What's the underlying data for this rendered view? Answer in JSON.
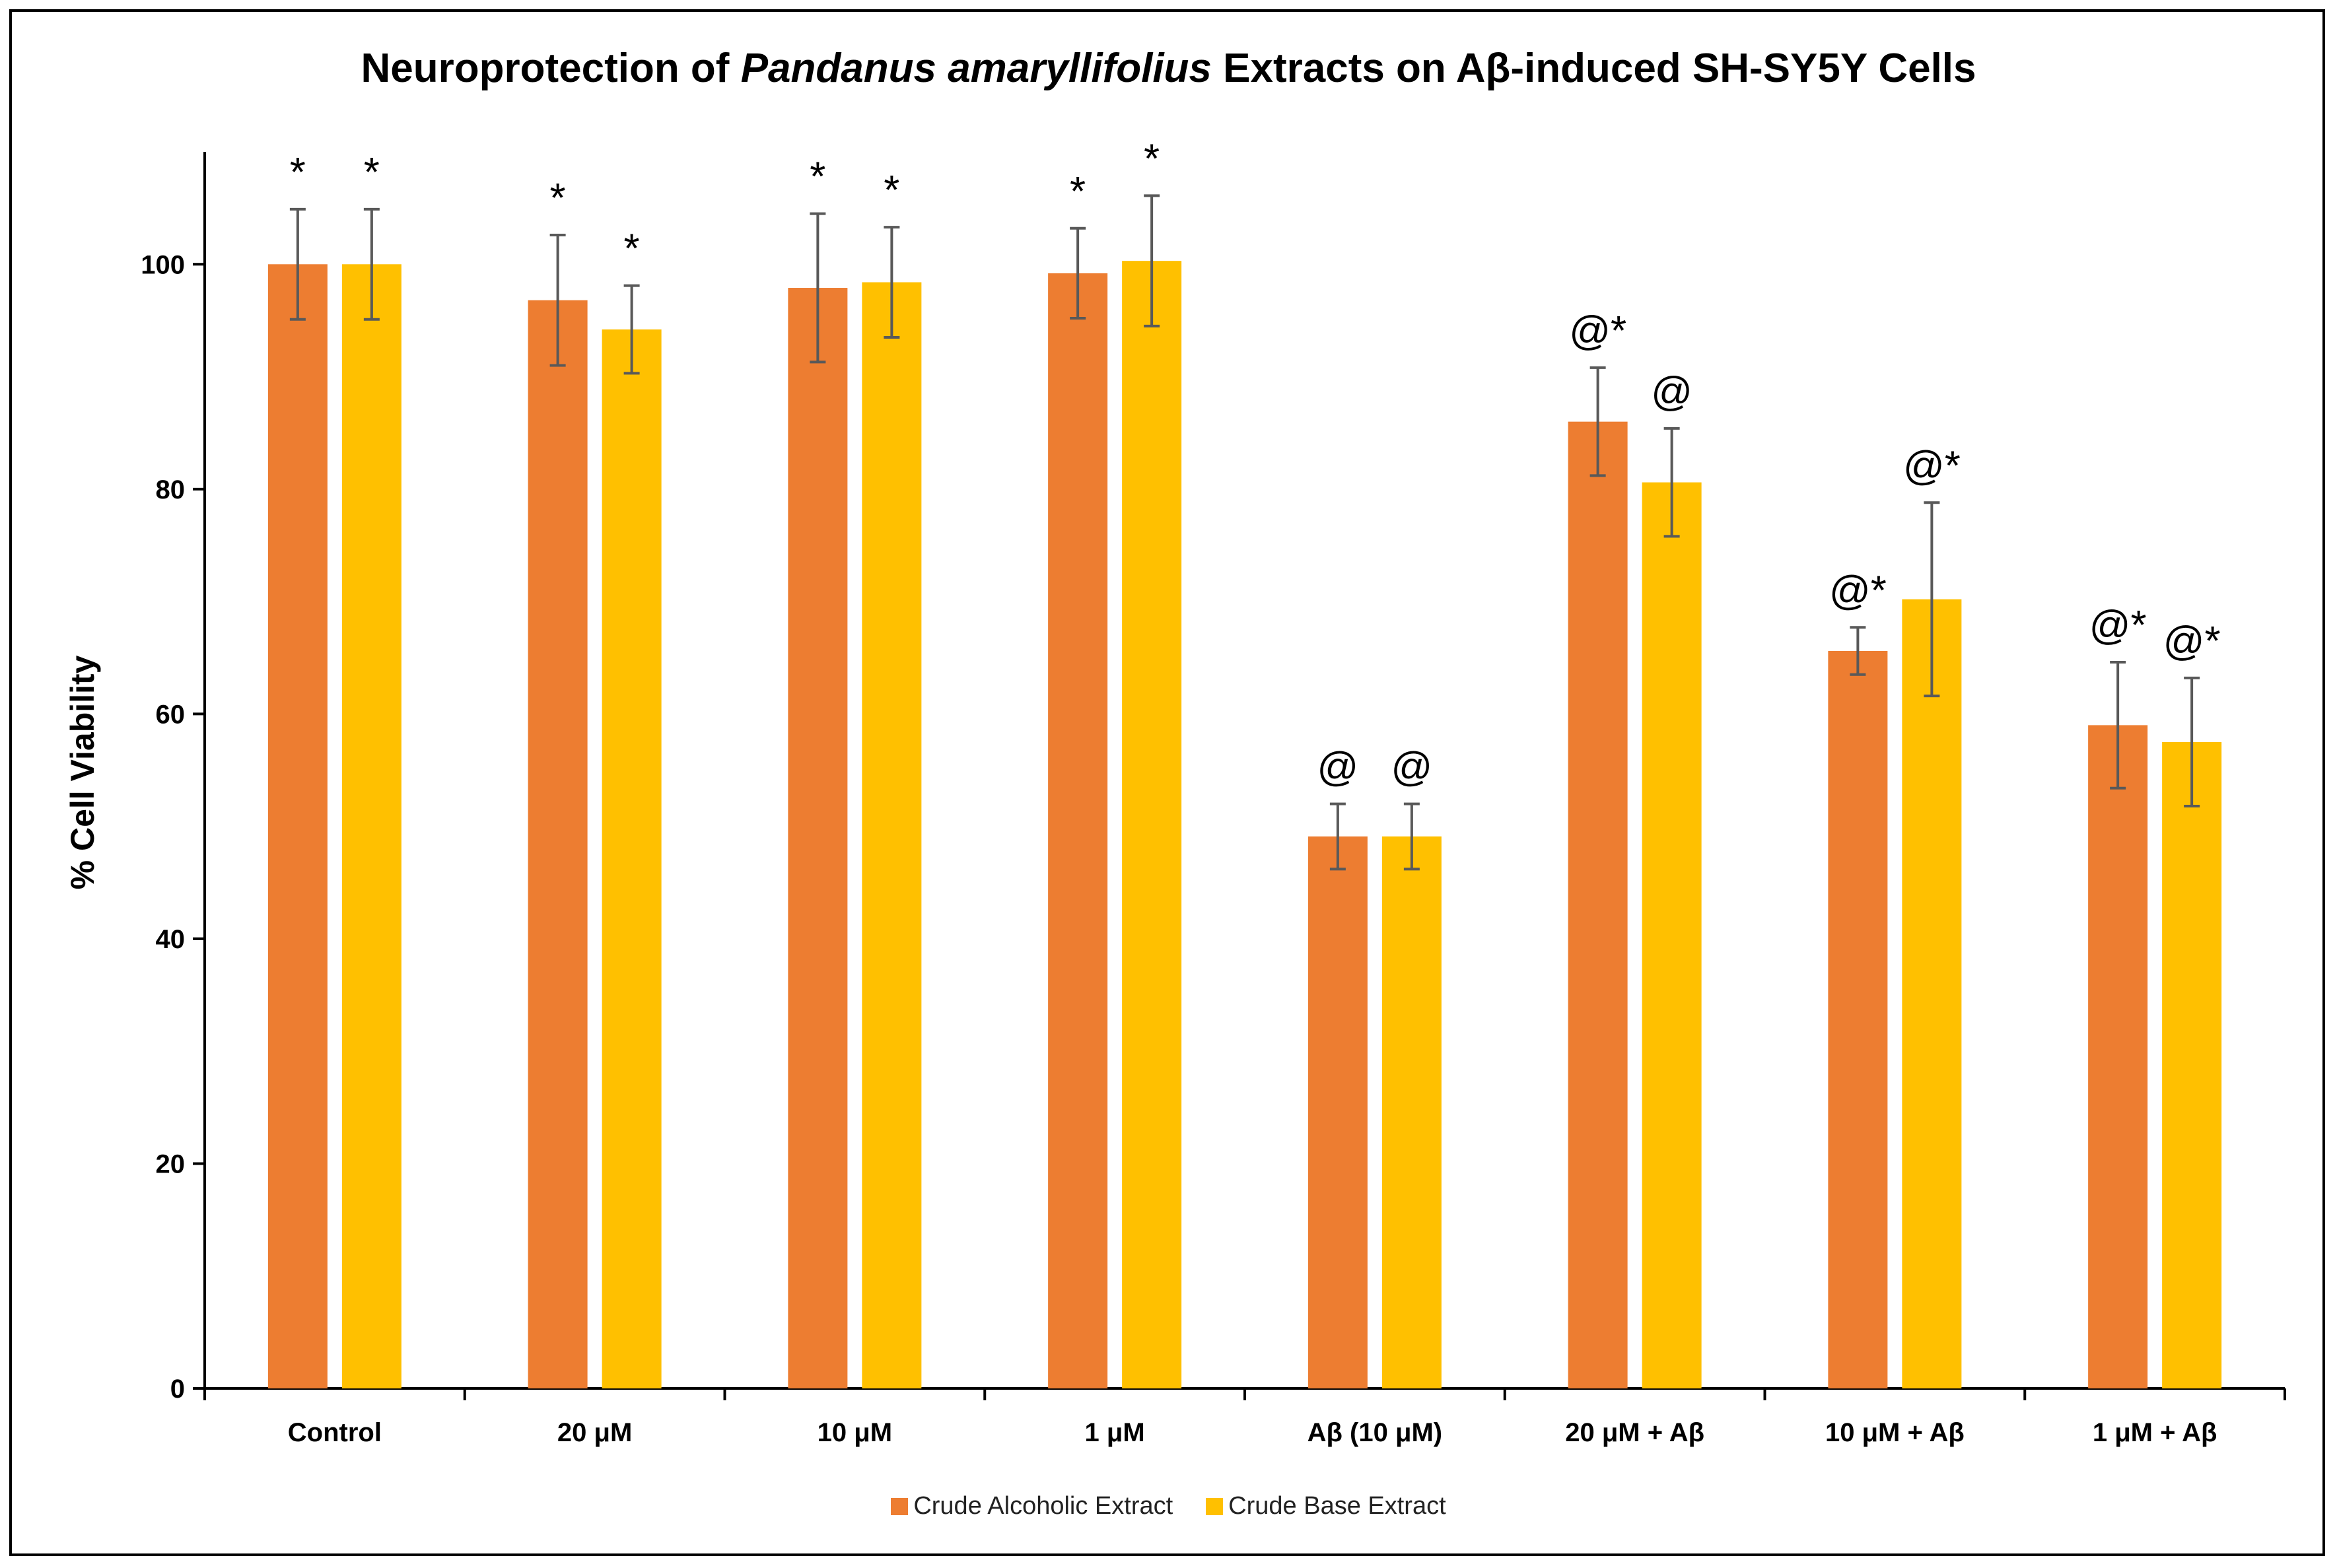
{
  "chart_data": {
    "type": "bar",
    "title_prefix": "Neuroprotection of ",
    "title_italic": "Pandanus amaryllifolius",
    "title_suffix": " Extracts on Aβ-induced SH-SY5Y Cells",
    "xlabel": "",
    "ylabel": "% Cell Viability",
    "ylim": [
      0,
      110
    ],
    "yticks": [
      0,
      20,
      40,
      60,
      80,
      100
    ],
    "categories": [
      "Control",
      "20 μM",
      "10 μM",
      "1 μM",
      "Aβ (10 μM)",
      "20 μM + Aβ",
      "10 μM + Aβ",
      "1 μM + Aβ"
    ],
    "series": [
      {
        "name": "Crude Alcoholic Extract",
        "color": "#ED7D31",
        "values": [
          100,
          96.8,
          97.9,
          99.2,
          49.1,
          86.0,
          65.6,
          59.0
        ],
        "errors": [
          4.9,
          5.8,
          6.6,
          4.0,
          2.9,
          4.8,
          2.1,
          5.6
        ],
        "annotations": [
          "*",
          "*",
          "*",
          "*",
          "@",
          "@*",
          "@*",
          "@*"
        ]
      },
      {
        "name": "Crude Base Extract",
        "color": "#FFC000",
        "values": [
          100,
          94.2,
          98.4,
          100.3,
          49.1,
          80.6,
          70.2,
          57.5
        ],
        "errors": [
          4.9,
          3.9,
          4.9,
          5.8,
          2.9,
          4.8,
          8.6,
          5.7
        ],
        "annotations": [
          "*",
          "*",
          "*",
          "*",
          "@",
          "@",
          "@*",
          "@*"
        ]
      }
    ],
    "grid": false,
    "legend_position": "bottom"
  }
}
